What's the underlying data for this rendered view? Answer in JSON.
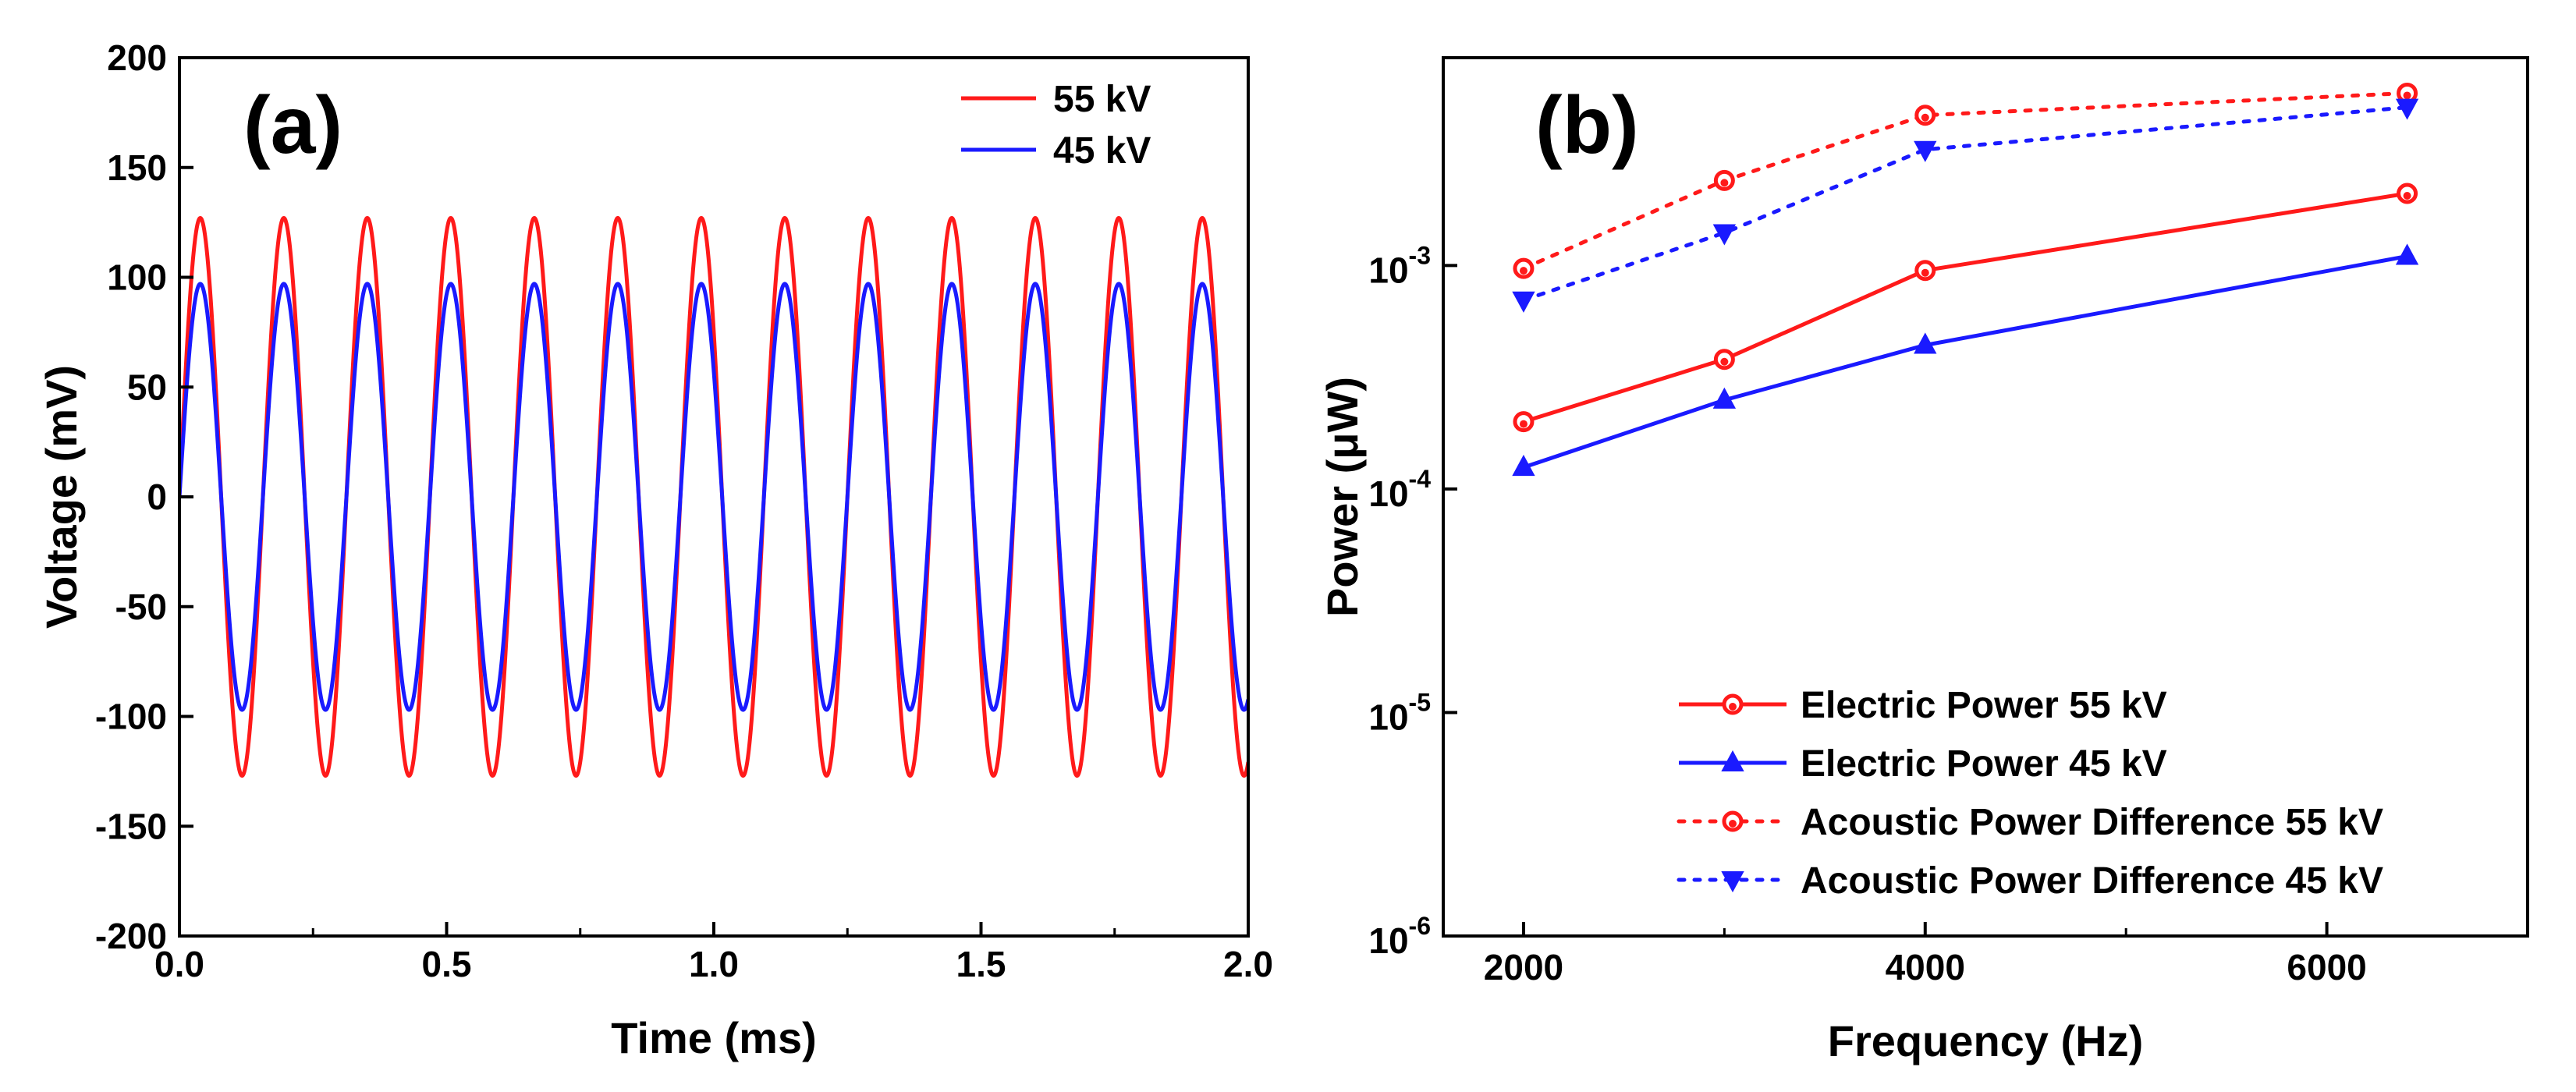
{
  "chart_data": [
    {
      "type": "line",
      "panel_label": "(a)",
      "xlabel": "Time (ms)",
      "ylabel": "Voltage (mV)",
      "xlim": [
        0.0,
        2.0
      ],
      "ylim": [
        -200,
        200
      ],
      "xticks": [
        "0.0",
        "0.5",
        "1.0",
        "1.5",
        "2.0"
      ],
      "xtick_values": [
        0.0,
        0.5,
        1.0,
        1.5,
        2.0
      ],
      "yticks": [
        "200",
        "150",
        "100",
        "50",
        "0",
        "-50",
        "-100",
        "-150",
        "-200"
      ],
      "ytick_values": [
        200,
        150,
        100,
        50,
        0,
        -50,
        -100,
        -150,
        -200
      ],
      "legend_position": "top-right",
      "series": [
        {
          "name": "55 kV",
          "color": "#ff1a1a",
          "waveform": "sine",
          "amplitude_mV": 127,
          "frequency_kHz": 6.4,
          "phase": 0
        },
        {
          "name": "45 kV",
          "color": "#1a1aff",
          "waveform": "sine",
          "amplitude_mV": 97,
          "frequency_kHz": 6.4,
          "phase": 0
        }
      ]
    },
    {
      "type": "line",
      "panel_label": "(b)",
      "xlabel": "Frequency (Hz)",
      "ylabel_prefix": "Power (",
      "ylabel_unit": "μW",
      "ylabel_suffix": ")",
      "yscale": "log",
      "xlim": [
        1600,
        7000
      ],
      "ylim": [
        1e-06,
        0.0085
      ],
      "xticks": [
        "2000",
        "4000",
        "6000"
      ],
      "xtick_values": [
        2000,
        4000,
        6000
      ],
      "yticks": [
        {
          "base": "10",
          "exp": "-3",
          "value": 0.001
        },
        {
          "base": "10",
          "exp": "-4",
          "value": 0.0001
        },
        {
          "base": "10",
          "exp": "-5",
          "value": 1e-05
        },
        {
          "base": "10",
          "exp": "-6",
          "value": 1e-06
        }
      ],
      "legend_position": "bottom-right",
      "x": [
        2000,
        3000,
        4000,
        6400
      ],
      "series": [
        {
          "name": "Electric Power 55 kV",
          "color": "#ff1a1a",
          "dash": "solid",
          "marker": "circle",
          "values": [
            0.0002,
            0.00038,
            0.00095,
            0.0021
          ]
        },
        {
          "name": "Electric Power 45 kV",
          "color": "#1a1aff",
          "dash": "solid",
          "marker": "triangle-up",
          "values": [
            0.000125,
            0.00025,
            0.00044,
            0.0011
          ]
        },
        {
          "name": "Acoustic Power Difference 55 kV",
          "color": "#ff1a1a",
          "dash": "dotted",
          "marker": "circle",
          "values": [
            0.00097,
            0.0024,
            0.0047,
            0.0059
          ]
        },
        {
          "name": "Acoustic Power Difference 45 kV",
          "color": "#1a1aff",
          "dash": "dotted",
          "marker": "triangle-down",
          "values": [
            0.0007,
            0.0014,
            0.0033,
            0.0051
          ]
        }
      ]
    }
  ]
}
